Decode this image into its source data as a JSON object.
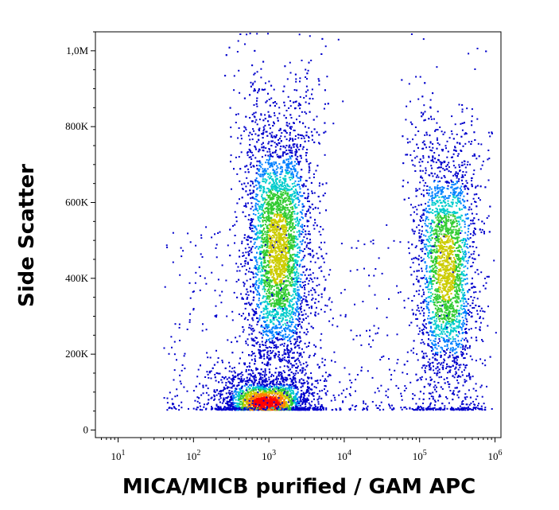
{
  "chart_data": {
    "type": "scatter",
    "title": "",
    "xlabel": "MICA/MICB purified / GAM APC",
    "ylabel": "Side Scatter",
    "x_scale": "log10",
    "xlim": [
      5,
      1200000
    ],
    "ylim": [
      -20000,
      1050000
    ],
    "x_ticks": [
      {
        "value": 10,
        "base": "10",
        "exp": "1"
      },
      {
        "value": 100,
        "base": "10",
        "exp": "2"
      },
      {
        "value": 1000,
        "base": "10",
        "exp": "3"
      },
      {
        "value": 10000,
        "base": "10",
        "exp": "4"
      },
      {
        "value": 100000,
        "base": "10",
        "exp": "5"
      },
      {
        "value": 1000000,
        "base": "10",
        "exp": "6"
      }
    ],
    "y_ticks": [
      {
        "value": 0,
        "label": "0"
      },
      {
        "value": 200000,
        "label": "200K"
      },
      {
        "value": 400000,
        "label": "400K"
      },
      {
        "value": 600000,
        "label": "600K"
      },
      {
        "value": 800000,
        "label": "800K"
      },
      {
        "value": 1000000,
        "label": "1,0M"
      }
    ],
    "grid": false,
    "legend": "none",
    "density_colormap": [
      "#0000cc",
      "#0080ff",
      "#00cccc",
      "#33cc33",
      "#cccc00",
      "#ff8000",
      "#ff0000"
    ],
    "populations": [
      {
        "x_center": 1300,
        "y_center": 480000,
        "x_sd_log10": 0.22,
        "y_sd": 150000
      },
      {
        "x_center": 900,
        "y_center": 70000,
        "x_sd_log10": 0.28,
        "y_sd": 30000
      },
      {
        "x_center": 220000,
        "y_center": 430000,
        "x_sd_log10": 0.2,
        "y_sd": 140000
      }
    ]
  }
}
